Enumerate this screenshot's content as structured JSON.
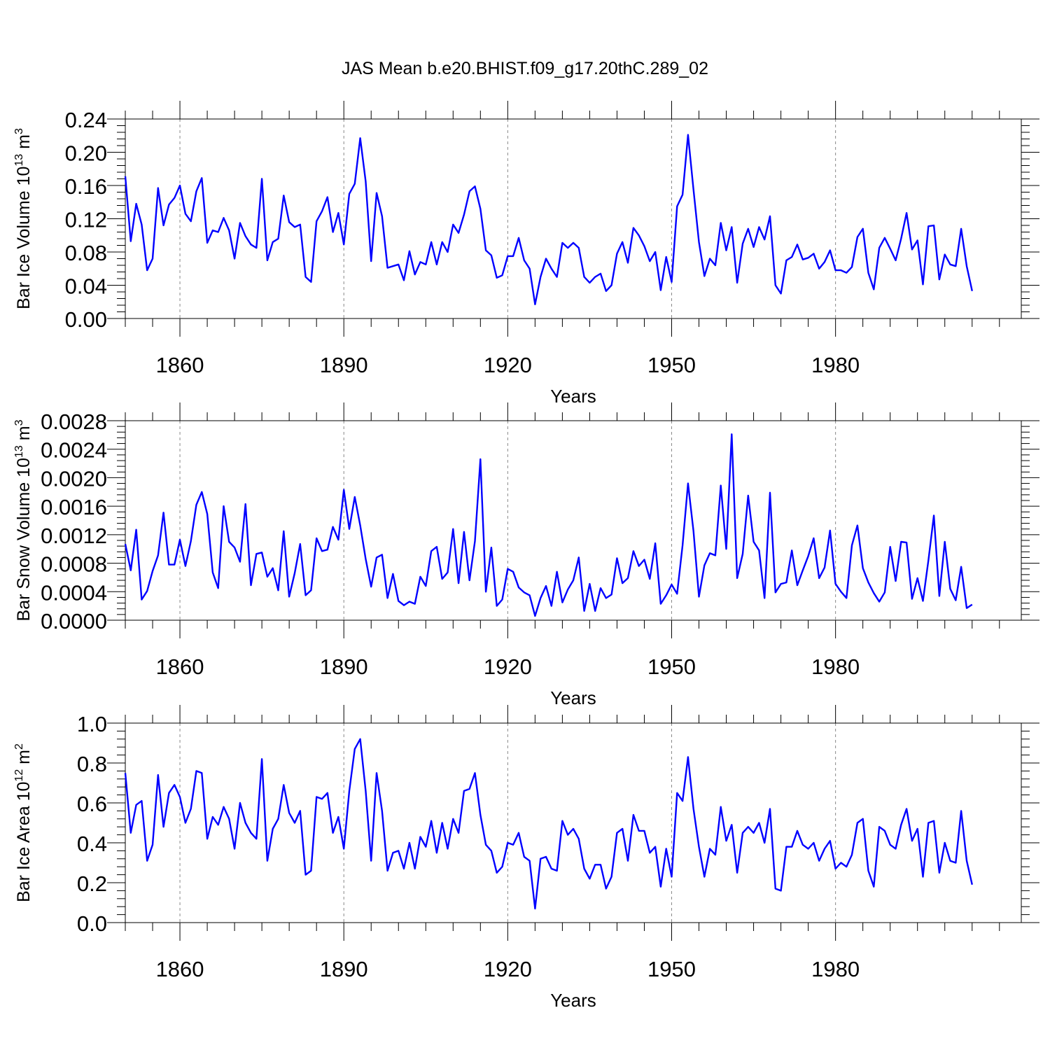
{
  "title": "JAS Mean b.e20.BHIST.f09_g17.20thC.289_02",
  "line_color": "#0000ff",
  "chart_data": [
    {
      "type": "line",
      "ylabel": "Bar Ice Volume",
      "ylabel_unit_base": "10",
      "ylabel_unit_exp": "13",
      "ylabel_unit": "m",
      "ylabel_unit_unit_exp": "3",
      "xlabel": "Years",
      "xlim": [
        1850,
        2014
      ],
      "ylim": [
        0,
        0.24
      ],
      "xticks": [
        "1860",
        "1890",
        "1920",
        "1950",
        "1980"
      ],
      "yticks": [
        "0.00",
        "0.04",
        "0.08",
        "0.12",
        "0.16",
        "0.20",
        "0.24"
      ],
      "series": [
        {
          "name": "Bar Ice Volume",
          "start_year": 1850,
          "values": [
            0.171,
            0.093,
            0.138,
            0.113,
            0.058,
            0.072,
            0.157,
            0.112,
            0.137,
            0.145,
            0.16,
            0.126,
            0.117,
            0.153,
            0.169,
            0.091,
            0.106,
            0.104,
            0.121,
            0.106,
            0.072,
            0.115,
            0.099,
            0.089,
            0.085,
            0.168,
            0.07,
            0.092,
            0.096,
            0.148,
            0.116,
            0.11,
            0.113,
            0.05,
            0.044,
            0.117,
            0.129,
            0.146,
            0.104,
            0.127,
            0.089,
            0.15,
            0.162,
            0.217,
            0.165,
            0.069,
            0.151,
            0.123,
            0.061,
            0.063,
            0.065,
            0.046,
            0.081,
            0.053,
            0.068,
            0.065,
            0.092,
            0.065,
            0.092,
            0.08,
            0.113,
            0.103,
            0.125,
            0.153,
            0.159,
            0.132,
            0.082,
            0.076,
            0.049,
            0.052,
            0.075,
            0.075,
            0.097,
            0.07,
            0.06,
            0.017,
            0.05,
            0.072,
            0.06,
            0.05,
            0.091,
            0.085,
            0.091,
            0.085,
            0.05,
            0.043,
            0.05,
            0.054,
            0.033,
            0.04,
            0.078,
            0.092,
            0.067,
            0.109,
            0.1,
            0.087,
            0.069,
            0.08,
            0.034,
            0.074,
            0.044,
            0.135,
            0.149,
            0.221,
            0.155,
            0.092,
            0.051,
            0.072,
            0.064,
            0.115,
            0.082,
            0.11,
            0.043,
            0.09,
            0.108,
            0.086,
            0.11,
            0.095,
            0.123,
            0.04,
            0.03,
            0.07,
            0.074,
            0.089,
            0.071,
            0.073,
            0.078,
            0.06,
            0.068,
            0.082,
            0.058,
            0.058,
            0.055,
            0.062,
            0.098,
            0.108,
            0.055,
            0.035,
            0.085,
            0.097,
            0.084,
            0.07,
            0.096,
            0.127,
            0.083,
            0.094,
            0.041,
            0.111,
            0.112,
            0.047,
            0.077,
            0.065,
            0.063,
            0.108,
            0.063,
            0.033
          ]
        }
      ]
    },
    {
      "type": "line",
      "ylabel": "Bar Snow Volume",
      "ylabel_unit_base": "10",
      "ylabel_unit_exp": "13",
      "ylabel_unit": "m",
      "ylabel_unit_unit_exp": "3",
      "xlabel": "Years",
      "xlim": [
        1850,
        2014
      ],
      "ylim": [
        0,
        0.0028
      ],
      "xticks": [
        "1860",
        "1890",
        "1920",
        "1950",
        "1980"
      ],
      "yticks": [
        "0.0000",
        "0.0004",
        "0.0008",
        "0.0012",
        "0.0016",
        "0.0020",
        "0.0024",
        "0.0028"
      ],
      "series": [
        {
          "name": "Bar Snow Volume",
          "start_year": 1850,
          "values": [
            0.00107,
            0.0007,
            0.00127,
            0.00029,
            0.00041,
            0.00069,
            0.00091,
            0.00151,
            0.00078,
            0.00078,
            0.00113,
            0.00076,
            0.00111,
            0.00162,
            0.0018,
            0.00149,
            0.00067,
            0.00045,
            0.0016,
            0.0011,
            0.00102,
            0.00082,
            0.00163,
            0.00049,
            0.00093,
            0.00095,
            0.00061,
            0.00073,
            0.00042,
            0.00125,
            0.00033,
            0.00066,
            0.00107,
            0.00035,
            0.00042,
            0.00115,
            0.00097,
            0.00099,
            0.00131,
            0.00113,
            0.00183,
            0.00128,
            0.00173,
            0.00133,
            0.00086,
            0.00047,
            0.00088,
            0.00092,
            0.00031,
            0.00065,
            0.00027,
            0.00021,
            0.00026,
            0.00023,
            0.00061,
            0.00048,
            0.00097,
            0.00103,
            0.00058,
            0.00067,
            0.00128,
            0.00052,
            0.00124,
            0.00056,
            0.00111,
            0.00226,
            0.0004,
            0.00102,
            0.0002,
            0.00029,
            0.00072,
            0.00068,
            0.00046,
            0.00039,
            0.00035,
            6e-05,
            0.00031,
            0.00048,
            0.0002,
            0.00068,
            0.00025,
            0.00043,
            0.00056,
            0.00088,
            0.00013,
            0.00051,
            0.00013,
            0.00045,
            0.00031,
            0.00036,
            0.00087,
            0.00052,
            0.00059,
            0.00097,
            0.00076,
            0.00085,
            0.00058,
            0.00108,
            0.00023,
            0.00035,
            0.0005,
            0.00037,
            0.00105,
            0.00192,
            0.00125,
            0.00033,
            0.00077,
            0.00094,
            0.00091,
            0.00189,
            0.001,
            0.00261,
            0.00059,
            0.00093,
            0.00175,
            0.0011,
            0.00098,
            0.00031,
            0.00179,
            0.00039,
            0.00051,
            0.00053,
            0.00098,
            0.00049,
            0.0007,
            0.0009,
            0.00115,
            0.00059,
            0.00074,
            0.00126,
            0.00051,
            0.0004,
            0.00031,
            0.00105,
            0.00133,
            0.00073,
            0.00053,
            0.00038,
            0.00026,
            0.00039,
            0.00103,
            0.00055,
            0.0011,
            0.00109,
            0.0003,
            0.00059,
            0.00027,
            0.00084,
            0.00147,
            0.00034,
            0.0011,
            0.00044,
            0.00028,
            0.00075,
            0.00017,
            0.00022
          ]
        }
      ]
    },
    {
      "type": "line",
      "ylabel": "Bar Ice Area",
      "ylabel_unit_base": "10",
      "ylabel_unit_exp": "12",
      "ylabel_unit": "m",
      "ylabel_unit_unit_exp": "2",
      "xlabel": "Years",
      "xlim": [
        1850,
        2014
      ],
      "ylim": [
        0,
        1.0
      ],
      "xticks": [
        "1860",
        "1890",
        "1920",
        "1950",
        "1980"
      ],
      "yticks": [
        "0.0",
        "0.2",
        "0.4",
        "0.6",
        "0.8",
        "1.0"
      ],
      "series": [
        {
          "name": "Bar Ice Area",
          "start_year": 1850,
          "values": [
            0.75,
            0.45,
            0.59,
            0.61,
            0.31,
            0.39,
            0.74,
            0.48,
            0.65,
            0.69,
            0.63,
            0.5,
            0.57,
            0.76,
            0.75,
            0.42,
            0.53,
            0.49,
            0.58,
            0.52,
            0.37,
            0.6,
            0.5,
            0.45,
            0.42,
            0.82,
            0.31,
            0.47,
            0.52,
            0.69,
            0.55,
            0.5,
            0.56,
            0.24,
            0.26,
            0.63,
            0.62,
            0.65,
            0.45,
            0.53,
            0.37,
            0.66,
            0.87,
            0.92,
            0.66,
            0.31,
            0.75,
            0.56,
            0.26,
            0.35,
            0.36,
            0.27,
            0.4,
            0.27,
            0.43,
            0.38,
            0.51,
            0.35,
            0.5,
            0.37,
            0.52,
            0.45,
            0.66,
            0.67,
            0.75,
            0.54,
            0.39,
            0.36,
            0.25,
            0.28,
            0.4,
            0.39,
            0.45,
            0.33,
            0.31,
            0.07,
            0.32,
            0.33,
            0.27,
            0.26,
            0.51,
            0.44,
            0.47,
            0.42,
            0.27,
            0.22,
            0.29,
            0.29,
            0.17,
            0.23,
            0.45,
            0.47,
            0.31,
            0.54,
            0.46,
            0.46,
            0.35,
            0.38,
            0.18,
            0.37,
            0.23,
            0.65,
            0.61,
            0.83,
            0.57,
            0.38,
            0.23,
            0.37,
            0.34,
            0.58,
            0.41,
            0.49,
            0.25,
            0.45,
            0.48,
            0.45,
            0.5,
            0.4,
            0.57,
            0.17,
            0.16,
            0.38,
            0.38,
            0.46,
            0.39,
            0.37,
            0.4,
            0.31,
            0.37,
            0.41,
            0.27,
            0.3,
            0.28,
            0.34,
            0.5,
            0.52,
            0.26,
            0.18,
            0.48,
            0.46,
            0.39,
            0.37,
            0.49,
            0.57,
            0.41,
            0.47,
            0.23,
            0.5,
            0.51,
            0.25,
            0.4,
            0.31,
            0.3,
            0.56,
            0.31,
            0.19
          ]
        }
      ]
    }
  ]
}
